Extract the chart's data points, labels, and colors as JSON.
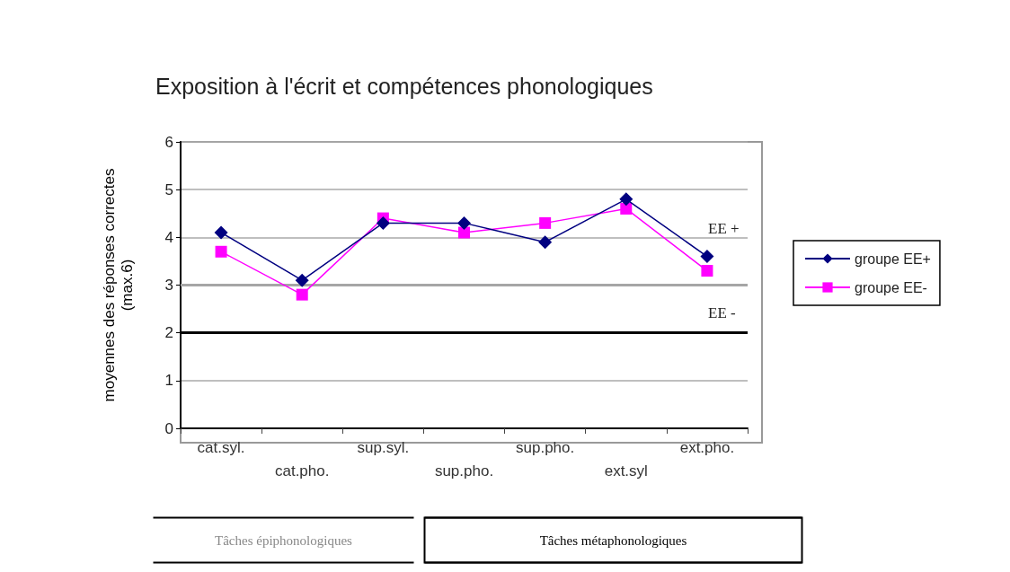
{
  "chart_data": {
    "type": "line",
    "title": "Exposition à l'écrit et compétences phonologiques",
    "ylabel": "moyennes des réponses correctes\n(max.6)",
    "categories": [
      "cat.syl.",
      "cat.pho.",
      "sup.syl.",
      "sup.pho.",
      "sup.pho.",
      "ext.syl",
      "ext.pho."
    ],
    "series": [
      {
        "name": "groupe EE+",
        "color": "#000080",
        "marker": "diamond",
        "values": [
          4.1,
          3.1,
          4.3,
          4.3,
          3.9,
          4.8,
          3.6
        ]
      },
      {
        "name": "groupe EE-",
        "color": "#ff00ff",
        "marker": "square",
        "values": [
          3.7,
          2.8,
          4.4,
          4.1,
          4.3,
          4.6,
          3.3
        ]
      }
    ],
    "ylim": [
      0,
      6
    ],
    "yticks": [
      0,
      1,
      2,
      3,
      4,
      5,
      6
    ],
    "grid": "y",
    "legend": "right",
    "ref_lines": [
      {
        "axis": "y",
        "value": 3,
        "color": "#a6a6a6"
      },
      {
        "axis": "y",
        "value": 2,
        "color": "#000000"
      }
    ],
    "annotations": [
      "EE +",
      "EE -",
      "Tâches épiphonologiques",
      "Tâches métaphonologiques"
    ]
  }
}
